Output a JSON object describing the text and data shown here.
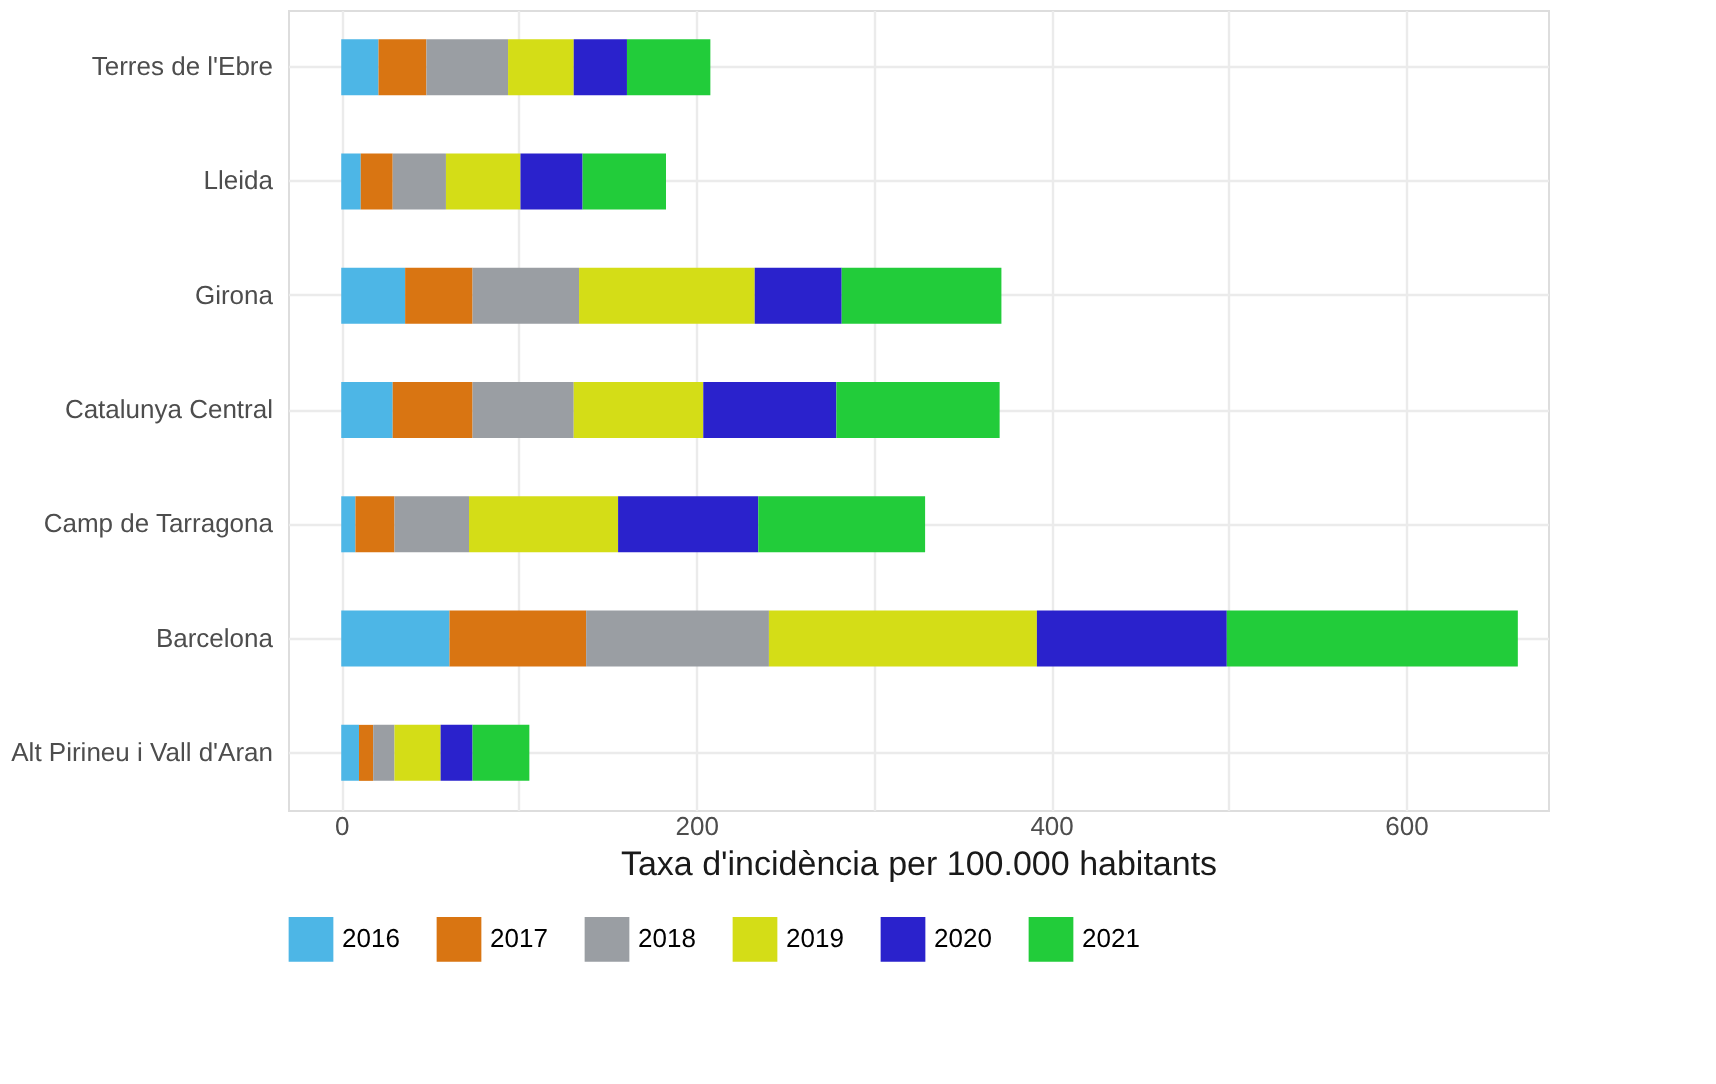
{
  "chart_data": {
    "type": "bar",
    "orientation": "horizontal",
    "stacked": true,
    "xlabel": "Taxa d'incidència per 100.000 habitants",
    "categories": [
      "Terres de l'Ebre",
      "Lleida",
      "Girona",
      "Catalunya Central",
      "Camp de Tarragona",
      "Barcelona",
      "Alt Pirineu i Vall d'Aran"
    ],
    "series": [
      {
        "name": "2016",
        "color": "#4db6e6",
        "values": [
          21,
          11,
          36,
          29,
          8,
          61,
          10
        ]
      },
      {
        "name": "2017",
        "color": "#d97512",
        "values": [
          27,
          18,
          38,
          45,
          22,
          77,
          8
        ]
      },
      {
        "name": "2018",
        "color": "#9a9ea3",
        "values": [
          46,
          30,
          60,
          57,
          42,
          103,
          12
        ]
      },
      {
        "name": "2019",
        "color": "#d4dd17",
        "values": [
          37,
          42,
          99,
          73,
          84,
          151,
          26
        ]
      },
      {
        "name": "2020",
        "color": "#2a22cc",
        "values": [
          30,
          35,
          49,
          75,
          79,
          107,
          18
        ]
      },
      {
        "name": "2021",
        "color": "#22cc3a",
        "values": [
          47,
          47,
          90,
          92,
          94,
          164,
          32
        ]
      }
    ],
    "xlim": [
      -30,
      680
    ],
    "xticks": [
      0,
      {
        "value": 100,
        "label": null
      },
      200,
      {
        "value": 300,
        "label": null
      },
      400,
      {
        "value": 500,
        "label": null
      },
      600
    ],
    "grid": true,
    "legend": "bottom"
  }
}
